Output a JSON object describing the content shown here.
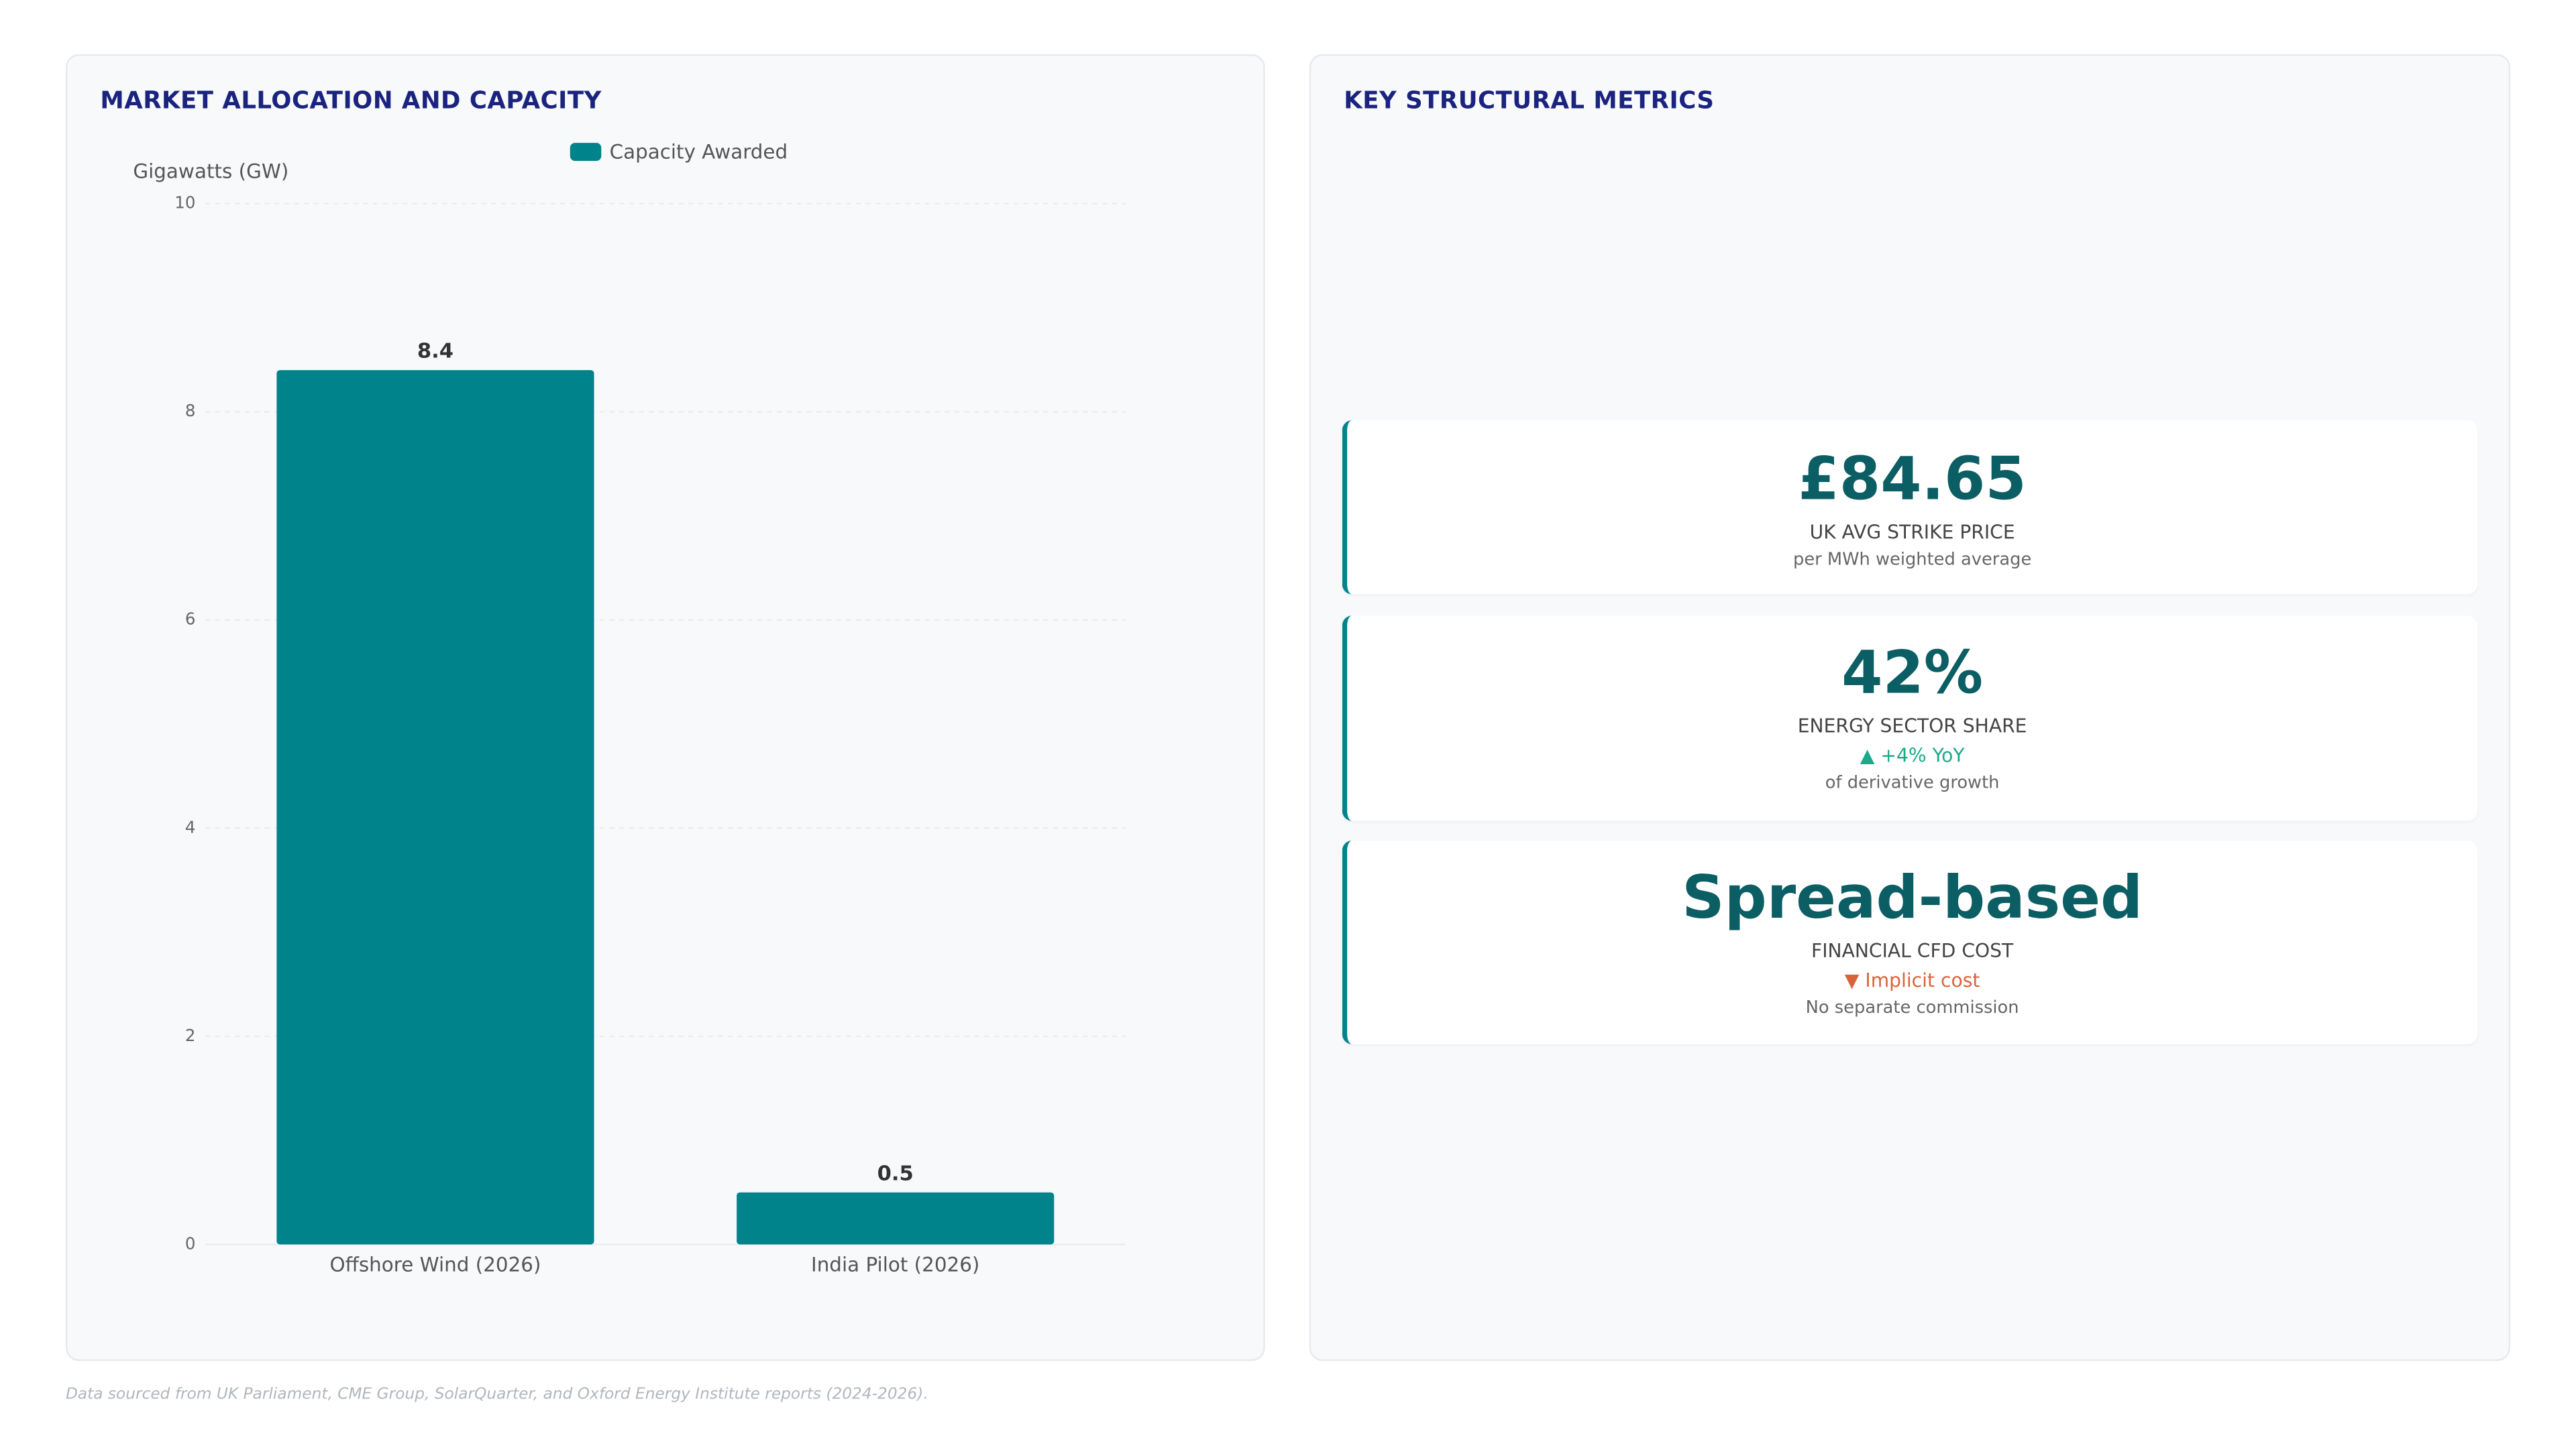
{
  "chart_panel_title": "MARKET ALLOCATION AND CAPACITY",
  "chart_data": {
    "type": "bar",
    "y_label": "Gigawatts (GW)",
    "categories": [
      "Offshore Wind (2026)",
      "India Pilot (2026)"
    ],
    "series": [
      {
        "name": "Capacity Awarded",
        "color": "#00838a",
        "values": [
          8.4,
          0.5
        ]
      }
    ],
    "ylim": [
      0,
      10
    ],
    "yticks": [
      0,
      2,
      4,
      6,
      8,
      10
    ],
    "grid": true
  },
  "metrics_panel": {
    "title": "KEY STRUCTURAL METRICS",
    "cards": [
      {
        "value": "£84.65",
        "label": "UK AVG STRIKE PRICE",
        "note": "per MWh weighted average"
      },
      {
        "value": "42%",
        "label": "ENERGY SECTOR SHARE",
        "change": "▲ +4% YoY",
        "note": "of derivative growth"
      },
      {
        "value": "Spread-based",
        "label": "FINANCIAL CFD COST",
        "change": "▼ Implicit cost",
        "note": "No separate commission"
      }
    ]
  },
  "footer": "Data sourced from UK Parliament, CME Group, SolarQuarter, and Oxford Energy Institute reports (2024-2026)."
}
